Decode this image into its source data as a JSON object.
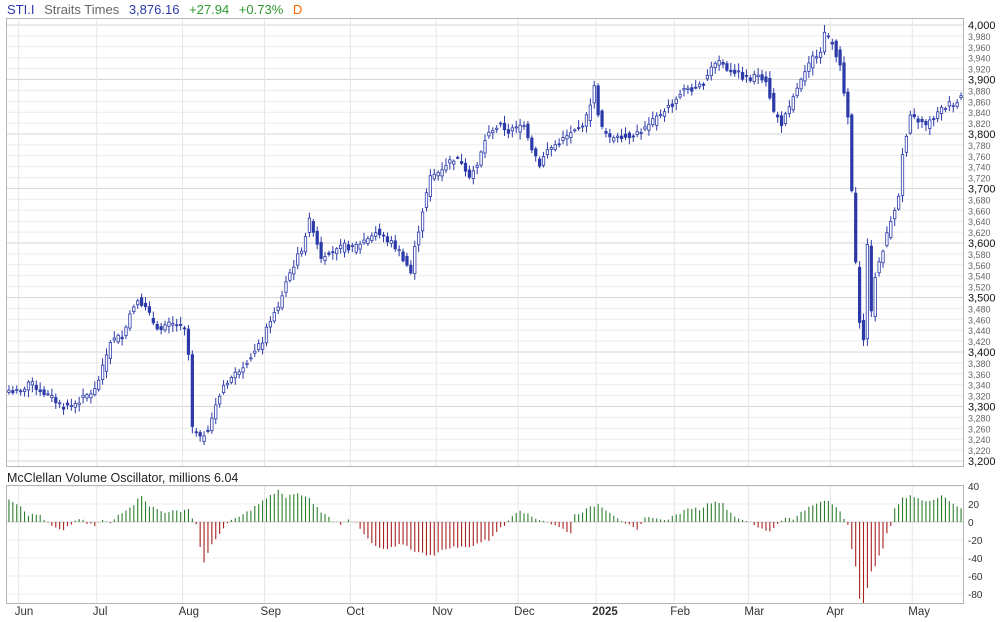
{
  "header": {
    "symbol": "STI.I",
    "name": "Straits Times",
    "last": "3,876.16",
    "change": "+27.94",
    "change_pct": "+0.73%",
    "period": "D"
  },
  "colors": {
    "candle": "#2b3aa8",
    "osc_positive": "#2e7d2e",
    "osc_negative": "#a82020",
    "grid": "#e3e3e3"
  },
  "chart_data": [
    {
      "type": "candlestick",
      "title": "STI.I Straits Times",
      "ylim": [
        3200,
        4000
      ],
      "y_ticks": [
        "3,200",
        "3,220",
        "3,240",
        "3,260",
        "3,280",
        "3,300",
        "3,320",
        "3,340",
        "3,360",
        "3,380",
        "3,400",
        "3,420",
        "3,440",
        "3,460",
        "3,480",
        "3,500",
        "3,520",
        "3,540",
        "3,560",
        "3,580",
        "3,600",
        "3,620",
        "3,640",
        "3,660",
        "3,680",
        "3,700",
        "3,720",
        "3,740",
        "3,760",
        "3,780",
        "3,800",
        "3,820",
        "3,840",
        "3,860",
        "3,880",
        "3,900",
        "3,920",
        "3,940",
        "3,960",
        "3,980",
        "4,000"
      ],
      "y_major_every": 5,
      "x_labels": [
        "Jun",
        "Jul",
        "Aug",
        "Sep",
        "Oct",
        "Nov",
        "Dec",
        "2025",
        "Feb",
        "Mar",
        "Apr",
        "May"
      ],
      "x_bold": "2025",
      "anchors": [
        [
          0,
          3330
        ],
        [
          3,
          3325
        ],
        [
          5,
          3345
        ],
        [
          8,
          3330
        ],
        [
          11,
          3315
        ],
        [
          14,
          3300
        ],
        [
          16,
          3302
        ],
        [
          19,
          3315
        ],
        [
          22,
          3330
        ],
        [
          24,
          3370
        ],
        [
          26,
          3420
        ],
        [
          29,
          3430
        ],
        [
          31,
          3470
        ],
        [
          33,
          3500
        ],
        [
          35,
          3480
        ],
        [
          37,
          3455
        ],
        [
          39,
          3440
        ],
        [
          41,
          3450
        ],
        [
          43,
          3450
        ],
        [
          45,
          3440
        ],
        [
          46,
          3395
        ],
        [
          47,
          3260
        ],
        [
          49,
          3240
        ],
        [
          51,
          3260
        ],
        [
          53,
          3300
        ],
        [
          55,
          3340
        ],
        [
          58,
          3360
        ],
        [
          61,
          3385
        ],
        [
          63,
          3400
        ],
        [
          65,
          3420
        ],
        [
          67,
          3460
        ],
        [
          69,
          3480
        ],
        [
          71,
          3530
        ],
        [
          73,
          3560
        ],
        [
          75,
          3590
        ],
        [
          77,
          3640
        ],
        [
          78,
          3625
        ],
        [
          79,
          3600
        ],
        [
          80,
          3575
        ],
        [
          82,
          3585
        ],
        [
          84,
          3585
        ],
        [
          86,
          3595
        ],
        [
          88,
          3590
        ],
        [
          90,
          3600
        ],
        [
          92,
          3610
        ],
        [
          94,
          3620
        ],
        [
          96,
          3610
        ],
        [
          98,
          3600
        ],
        [
          100,
          3585
        ],
        [
          102,
          3560
        ],
        [
          103,
          3545
        ],
        [
          104,
          3590
        ],
        [
          106,
          3660
        ],
        [
          108,
          3720
        ],
        [
          110,
          3730
        ],
        [
          112,
          3745
        ],
        [
          114,
          3755
        ],
        [
          116,
          3750
        ],
        [
          118,
          3725
        ],
        [
          120,
          3740
        ],
        [
          122,
          3790
        ],
        [
          124,
          3810
        ],
        [
          126,
          3815
        ],
        [
          128,
          3805
        ],
        [
          130,
          3810
        ],
        [
          132,
          3820
        ],
        [
          134,
          3775
        ],
        [
          136,
          3745
        ],
        [
          138,
          3770
        ],
        [
          140,
          3780
        ],
        [
          142,
          3790
        ],
        [
          144,
          3800
        ],
        [
          146,
          3810
        ],
        [
          148,
          3830
        ],
        [
          150,
          3885
        ],
        [
          151,
          3840
        ],
        [
          152,
          3810
        ],
        [
          154,
          3790
        ],
        [
          156,
          3800
        ],
        [
          158,
          3795
        ],
        [
          160,
          3800
        ],
        [
          162,
          3805
        ],
        [
          164,
          3815
        ],
        [
          166,
          3830
        ],
        [
          168,
          3845
        ],
        [
          170,
          3855
        ],
        [
          172,
          3875
        ],
        [
          174,
          3885
        ],
        [
          176,
          3880
        ],
        [
          178,
          3895
        ],
        [
          180,
          3925
        ],
        [
          182,
          3935
        ],
        [
          184,
          3920
        ],
        [
          186,
          3915
        ],
        [
          188,
          3905
        ],
        [
          190,
          3900
        ],
        [
          192,
          3910
        ],
        [
          194,
          3900
        ],
        [
          196,
          3840
        ],
        [
          198,
          3820
        ],
        [
          200,
          3845
        ],
        [
          202,
          3885
        ],
        [
          204,
          3910
        ],
        [
          206,
          3940
        ],
        [
          208,
          3955
        ],
        [
          209,
          3985
        ],
        [
          211,
          3965
        ],
        [
          213,
          3930
        ],
        [
          214,
          3870
        ],
        [
          215,
          3830
        ],
        [
          217,
          3560
        ],
        [
          218,
          3460
        ],
        [
          219,
          3420
        ],
        [
          220,
          3600
        ],
        [
          221,
          3470
        ],
        [
          222,
          3540
        ],
        [
          224,
          3590
        ],
        [
          226,
          3640
        ],
        [
          228,
          3690
        ],
        [
          229,
          3760
        ],
        [
          231,
          3830
        ],
        [
          233,
          3825
        ],
        [
          235,
          3815
        ],
        [
          237,
          3830
        ],
        [
          239,
          3845
        ],
        [
          241,
          3855
        ],
        [
          243,
          3860
        ],
        [
          244,
          3870
        ]
      ],
      "series": [
        {
          "name": "STI.I"
        }
      ]
    },
    {
      "type": "bar",
      "title": "McClellan Volume Oscillator, millions 6.04",
      "ylim": [
        -90,
        40
      ],
      "y_ticks": [
        40,
        20,
        0,
        -20,
        -40,
        -60,
        -80
      ],
      "anchors": [
        [
          0,
          26
        ],
        [
          3,
          18
        ],
        [
          5,
          8
        ],
        [
          8,
          8
        ],
        [
          10,
          -2
        ],
        [
          12,
          -7
        ],
        [
          14,
          -10
        ],
        [
          16,
          -2
        ],
        [
          18,
          4
        ],
        [
          20,
          -2
        ],
        [
          22,
          -4
        ],
        [
          24,
          2
        ],
        [
          26,
          -2
        ],
        [
          28,
          8
        ],
        [
          30,
          14
        ],
        [
          32,
          20
        ],
        [
          34,
          30
        ],
        [
          36,
          18
        ],
        [
          38,
          14
        ],
        [
          40,
          10
        ],
        [
          42,
          14
        ],
        [
          44,
          10
        ],
        [
          46,
          16
        ],
        [
          47,
          4
        ],
        [
          48,
          -2
        ],
        [
          49,
          -28
        ],
        [
          50,
          -44
        ],
        [
          52,
          -26
        ],
        [
          54,
          -12
        ],
        [
          56,
          -2
        ],
        [
          58,
          4
        ],
        [
          60,
          8
        ],
        [
          62,
          14
        ],
        [
          64,
          20
        ],
        [
          66,
          26
        ],
        [
          68,
          32
        ],
        [
          69,
          36
        ],
        [
          71,
          26
        ],
        [
          73,
          32
        ],
        [
          75,
          30
        ],
        [
          77,
          26
        ],
        [
          79,
          16
        ],
        [
          81,
          8
        ],
        [
          83,
          2
        ],
        [
          85,
          -2
        ],
        [
          87,
          4
        ],
        [
          89,
          -2
        ],
        [
          91,
          -14
        ],
        [
          93,
          -24
        ],
        [
          95,
          -30
        ],
        [
          97,
          -30
        ],
        [
          99,
          -28
        ],
        [
          101,
          -24
        ],
        [
          103,
          -30
        ],
        [
          105,
          -34
        ],
        [
          107,
          -36
        ],
        [
          109,
          -36
        ],
        [
          111,
          -32
        ],
        [
          113,
          -28
        ],
        [
          115,
          -28
        ],
        [
          117,
          -28
        ],
        [
          119,
          -26
        ],
        [
          121,
          -22
        ],
        [
          123,
          -20
        ],
        [
          125,
          -10
        ],
        [
          127,
          -4
        ],
        [
          129,
          8
        ],
        [
          131,
          14
        ],
        [
          133,
          8
        ],
        [
          135,
          4
        ],
        [
          137,
          2
        ],
        [
          139,
          -2
        ],
        [
          141,
          -6
        ],
        [
          143,
          -10
        ],
        [
          144,
          -12
        ],
        [
          145,
          8
        ],
        [
          147,
          12
        ],
        [
          149,
          16
        ],
        [
          151,
          20
        ],
        [
          153,
          14
        ],
        [
          155,
          8
        ],
        [
          157,
          2
        ],
        [
          159,
          -4
        ],
        [
          161,
          -10
        ],
        [
          163,
          4
        ],
        [
          165,
          6
        ],
        [
          167,
          2
        ],
        [
          169,
          4
        ],
        [
          171,
          8
        ],
        [
          173,
          12
        ],
        [
          175,
          16
        ],
        [
          177,
          14
        ],
        [
          179,
          20
        ],
        [
          181,
          24
        ],
        [
          183,
          20
        ],
        [
          185,
          10
        ],
        [
          187,
          4
        ],
        [
          189,
          2
        ],
        [
          191,
          -4
        ],
        [
          193,
          -8
        ],
        [
          195,
          -10
        ],
        [
          197,
          -2
        ],
        [
          199,
          6
        ],
        [
          201,
          2
        ],
        [
          203,
          12
        ],
        [
          205,
          16
        ],
        [
          207,
          20
        ],
        [
          209,
          24
        ],
        [
          211,
          20
        ],
        [
          213,
          12
        ],
        [
          214,
          4
        ],
        [
          215,
          -2
        ],
        [
          216,
          -30
        ],
        [
          217,
          -48
        ],
        [
          218,
          -84
        ],
        [
          219,
          -90
        ],
        [
          220,
          -74
        ],
        [
          221,
          -56
        ],
        [
          222,
          -50
        ],
        [
          223,
          -36
        ],
        [
          224,
          -28
        ],
        [
          225,
          -14
        ],
        [
          226,
          -4
        ],
        [
          227,
          14
        ],
        [
          229,
          26
        ],
        [
          231,
          30
        ],
        [
          233,
          26
        ],
        [
          235,
          22
        ],
        [
          237,
          26
        ],
        [
          239,
          30
        ],
        [
          241,
          24
        ],
        [
          243,
          18
        ],
        [
          244,
          14
        ]
      ],
      "series": [
        {
          "name": "McClellan Volume Oscillator"
        }
      ]
    }
  ]
}
